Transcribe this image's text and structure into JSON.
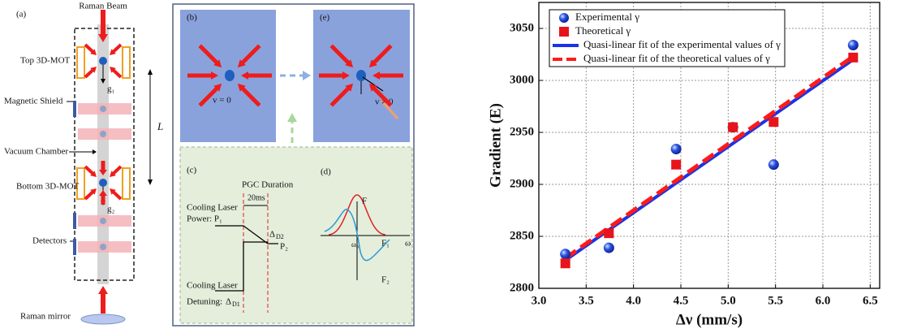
{
  "diagram": {
    "panel_a": {
      "label": "(a)",
      "raman_beam": "Raman Beam",
      "top_mot": "Top 3D-MOT",
      "magnetic_shield": "Magnetic Shield",
      "vacuum_chamber": "Vacuum Chamber",
      "bottom_mot": "Bottom 3D-MOT",
      "detectors": "Detectors",
      "raman_mirror": "Raman mirror",
      "g1": "g₁",
      "g2": "g₂",
      "length": "L"
    },
    "panel_b": {
      "label": "(b)",
      "velocity": "v = 0"
    },
    "panel_e": {
      "label": "(e)",
      "velocity": "v ≠ 0"
    },
    "panel_c": {
      "label": "(c)",
      "duration": "PGC Duration",
      "time": "20ms",
      "power_line1": "Cooling Laser",
      "power_line2": "Power:  P₁",
      "p2": "P₂",
      "detuning_line1": "Cooling Laser",
      "detuning_line2": "Detuning:",
      "d1_symbol": "Δ",
      "d1_sub": "D1",
      "d2_symbol": "Δ",
      "d2_sub": "D2"
    },
    "panel_d": {
      "label": "(d)",
      "f": "F",
      "f1": "F₁",
      "f2": "F₂",
      "omega0": "ω₀",
      "omega": "ω"
    }
  },
  "chart_data": {
    "type": "scatter",
    "x_label": "Δν (mm/s)",
    "y_label": "Gradient (E)",
    "xlim": [
      3.0,
      6.6
    ],
    "ylim": [
      2800,
      3075
    ],
    "xticks": [
      {
        "value": 3,
        "label": "3.0"
      },
      {
        "value": 3.5,
        "label": "3.5"
      },
      {
        "value": 4,
        "label": "4.0"
      },
      {
        "value": 4.5,
        "label": "4.5"
      },
      {
        "value": 5,
        "label": "5.0"
      },
      {
        "value": 5.5,
        "label": "5.5"
      },
      {
        "value": 6,
        "label": "6.0"
      },
      {
        "value": 6.5,
        "label": "6.5"
      }
    ],
    "yticks": [
      2800,
      2850,
      2900,
      2950,
      3000,
      3050
    ],
    "grid": true,
    "legend": "upper left",
    "series": [
      {
        "name": "Experimental γ",
        "color": "#1f3fd6",
        "marker": "circle",
        "x": [
          3.28,
          3.74,
          4.45,
          5.05,
          5.48,
          6.32
        ],
        "values": [
          2833,
          2839,
          2934,
          2955,
          2919,
          3034
        ]
      },
      {
        "name": "Theoretical γ",
        "color": "#e8141b",
        "marker": "square",
        "x": [
          3.28,
          3.74,
          4.45,
          5.05,
          5.48,
          6.32
        ],
        "values": [
          2824,
          2853,
          2919,
          2955,
          2960,
          3022
        ]
      },
      {
        "name": "Quasi-linear fit of the experimental values of γ",
        "color": "#1a33e6",
        "marker": "line",
        "line_style": "solid",
        "x": [
          3.28,
          6.32
        ],
        "values": [
          2827,
          3020
        ]
      },
      {
        "name": "Quasi-linear fit of the theoretical values of γ",
        "color": "#ff1a1a",
        "marker": "line",
        "line_style": "dashed",
        "x": [
          3.28,
          6.32
        ],
        "values": [
          2829,
          3023
        ]
      }
    ]
  }
}
